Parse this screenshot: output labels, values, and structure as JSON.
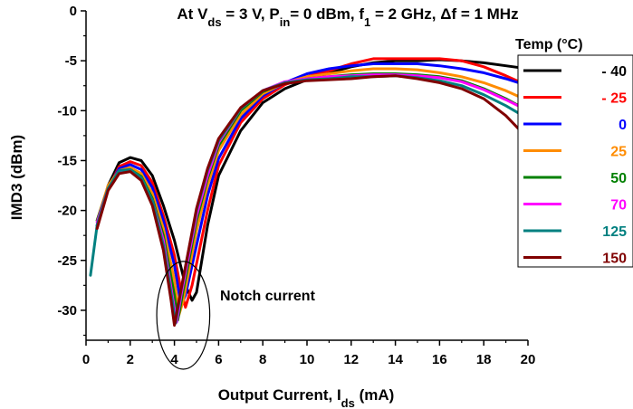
{
  "chart_data": {
    "type": "line",
    "title": {
      "prefix": "At V",
      "vds_sub": "ds",
      "vds_value": " = 3 V, P",
      "pin_sub": "in",
      "pin_value": "= 0 dBm, f",
      "f1_sub": "1",
      "f1_value": " = 2 GHz, ",
      "delta": "Δ",
      "df_value": "f = 1 MHz"
    },
    "xlabel": {
      "main": "Output Current, I",
      "sub": "ds",
      "unit": " (mA)"
    },
    "ylabel": "IMD3 (dBm)",
    "xlim": [
      0,
      20
    ],
    "ylim": [
      -33,
      0
    ],
    "x_ticks": [
      "0",
      "2",
      "4",
      "6",
      "8",
      "10",
      "12",
      "14",
      "16",
      "18",
      "20"
    ],
    "y_ticks": [
      "0",
      "-5",
      "-10",
      "-15",
      "-20",
      "-25",
      "-30"
    ],
    "grid": false,
    "legend": {
      "title": "Temp (°C)",
      "placement": "right"
    },
    "annotation": {
      "text": "Notch current",
      "ellipse_center": [
        4.4,
        -30.5
      ],
      "ellipse_radii": [
        1.2,
        5.4
      ]
    },
    "series": [
      {
        "name": "- 40",
        "color": "#000000",
        "points": [
          [
            0.5,
            -21.5
          ],
          [
            1,
            -17.5
          ],
          [
            1.5,
            -15.2
          ],
          [
            2,
            -14.7
          ],
          [
            2.5,
            -15.0
          ],
          [
            3,
            -16.5
          ],
          [
            3.5,
            -19.5
          ],
          [
            4,
            -23.0
          ],
          [
            4.5,
            -27.5
          ],
          [
            4.8,
            -29.0
          ],
          [
            5,
            -28.2
          ],
          [
            5.5,
            -21.5
          ],
          [
            6,
            -16.5
          ],
          [
            7,
            -12.0
          ],
          [
            8,
            -9.2
          ],
          [
            9,
            -7.8
          ],
          [
            10,
            -6.9
          ],
          [
            11,
            -6.2
          ],
          [
            12,
            -5.6
          ],
          [
            13,
            -5.2
          ],
          [
            14,
            -5.0
          ],
          [
            15,
            -5.0
          ],
          [
            16,
            -4.9
          ],
          [
            17,
            -5.0
          ],
          [
            18,
            -5.2
          ],
          [
            19,
            -5.5
          ],
          [
            20,
            -5.8
          ]
        ]
      },
      {
        "name": "- 25",
        "color": "#ff0000",
        "points": [
          [
            0.5,
            -21.8
          ],
          [
            1,
            -17.8
          ],
          [
            1.5,
            -15.6
          ],
          [
            2,
            -15.1
          ],
          [
            2.5,
            -15.5
          ],
          [
            3,
            -17.2
          ],
          [
            3.5,
            -20.5
          ],
          [
            4,
            -24.5
          ],
          [
            4.3,
            -28.0
          ],
          [
            4.5,
            -29.7
          ],
          [
            4.8,
            -27.5
          ],
          [
            5.5,
            -20.0
          ],
          [
            6,
            -15.5
          ],
          [
            7,
            -11.2
          ],
          [
            8,
            -8.8
          ],
          [
            9,
            -7.4
          ],
          [
            10,
            -6.6
          ],
          [
            11,
            -6.0
          ],
          [
            12,
            -5.3
          ],
          [
            13,
            -4.8
          ],
          [
            14,
            -4.8
          ],
          [
            15,
            -4.8
          ],
          [
            16,
            -4.8
          ],
          [
            17,
            -5.0
          ],
          [
            18,
            -5.6
          ],
          [
            19,
            -6.5
          ],
          [
            20,
            -7.5
          ]
        ]
      },
      {
        "name": "0",
        "color": "#0000ff",
        "points": [
          [
            0.5,
            -21.5
          ],
          [
            1,
            -17.7
          ],
          [
            1.5,
            -15.8
          ],
          [
            2,
            -15.4
          ],
          [
            2.5,
            -15.9
          ],
          [
            3,
            -17.7
          ],
          [
            3.5,
            -21.0
          ],
          [
            4,
            -25.5
          ],
          [
            4.3,
            -29.5
          ],
          [
            4.5,
            -28.5
          ],
          [
            5,
            -23.5
          ],
          [
            5.5,
            -18.5
          ],
          [
            6,
            -14.8
          ],
          [
            7,
            -10.8
          ],
          [
            8,
            -8.5
          ],
          [
            9,
            -7.2
          ],
          [
            10,
            -6.3
          ],
          [
            11,
            -5.8
          ],
          [
            12,
            -5.5
          ],
          [
            13,
            -5.3
          ],
          [
            14,
            -5.3
          ],
          [
            15,
            -5.3
          ],
          [
            16,
            -5.5
          ],
          [
            17,
            -5.8
          ],
          [
            18,
            -6.2
          ],
          [
            19,
            -6.8
          ],
          [
            20,
            -7.5
          ]
        ]
      },
      {
        "name": "25",
        "color": "#ff8c00",
        "points": [
          [
            0.5,
            -21.0
          ],
          [
            1,
            -17.5
          ],
          [
            1.5,
            -16.0
          ],
          [
            2,
            -15.7
          ],
          [
            2.5,
            -16.3
          ],
          [
            3,
            -18.3
          ],
          [
            3.5,
            -21.8
          ],
          [
            4,
            -27.0
          ],
          [
            4.2,
            -30.5
          ],
          [
            4.4,
            -29.0
          ],
          [
            5,
            -22.0
          ],
          [
            5.5,
            -17.5
          ],
          [
            6,
            -14.0
          ],
          [
            7,
            -10.4
          ],
          [
            8,
            -8.3
          ],
          [
            9,
            -7.2
          ],
          [
            10,
            -6.6
          ],
          [
            11,
            -6.3
          ],
          [
            12,
            -6.0
          ],
          [
            13,
            -5.8
          ],
          [
            14,
            -5.8
          ],
          [
            15,
            -5.9
          ],
          [
            16,
            -6.2
          ],
          [
            17,
            -6.6
          ],
          [
            18,
            -7.2
          ],
          [
            19,
            -8.0
          ],
          [
            20,
            -9.0
          ]
        ]
      },
      {
        "name": "50",
        "color": "#008000",
        "points": [
          [
            0.5,
            -21.0
          ],
          [
            1,
            -17.8
          ],
          [
            1.5,
            -16.2
          ],
          [
            2,
            -15.9
          ],
          [
            2.5,
            -16.6
          ],
          [
            3,
            -18.8
          ],
          [
            3.5,
            -22.5
          ],
          [
            4,
            -28.5
          ],
          [
            4.15,
            -31.0
          ],
          [
            4.4,
            -28.0
          ],
          [
            5,
            -21.0
          ],
          [
            5.5,
            -16.8
          ],
          [
            6,
            -13.5
          ],
          [
            7,
            -10.0
          ],
          [
            8,
            -8.1
          ],
          [
            9,
            -7.2
          ],
          [
            10,
            -6.8
          ],
          [
            11,
            -6.6
          ],
          [
            12,
            -6.4
          ],
          [
            13,
            -6.3
          ],
          [
            14,
            -6.3
          ],
          [
            15,
            -6.4
          ],
          [
            16,
            -6.6
          ],
          [
            17,
            -7.0
          ],
          [
            18,
            -7.8
          ],
          [
            19,
            -8.8
          ],
          [
            20,
            -10.0
          ]
        ]
      },
      {
        "name": "70",
        "color": "#ff00ff",
        "points": [
          [
            0.5,
            -21.2
          ],
          [
            1,
            -17.8
          ],
          [
            1.5,
            -16.2
          ],
          [
            2,
            -16.0
          ],
          [
            2.5,
            -16.8
          ],
          [
            3,
            -19.0
          ],
          [
            3.5,
            -23.0
          ],
          [
            3.9,
            -28.5
          ],
          [
            4.1,
            -31.2
          ],
          [
            4.3,
            -28.5
          ],
          [
            5,
            -20.5
          ],
          [
            5.5,
            -16.5
          ],
          [
            6,
            -13.2
          ],
          [
            7,
            -9.8
          ],
          [
            8,
            -8.0
          ],
          [
            9,
            -7.1
          ],
          [
            10,
            -6.8
          ],
          [
            11,
            -6.6
          ],
          [
            12,
            -6.5
          ],
          [
            13,
            -6.4
          ],
          [
            14,
            -6.4
          ],
          [
            15,
            -6.5
          ],
          [
            16,
            -6.7
          ],
          [
            17,
            -7.1
          ],
          [
            18,
            -7.9
          ],
          [
            19,
            -8.9
          ],
          [
            20,
            -10.0
          ]
        ]
      },
      {
        "name": "125",
        "color": "#008080",
        "points": [
          [
            0.2,
            -26.5
          ],
          [
            0.5,
            -21.5
          ],
          [
            1,
            -17.8
          ],
          [
            1.5,
            -16.0
          ],
          [
            2,
            -15.9
          ],
          [
            2.5,
            -16.7
          ],
          [
            3,
            -19.0
          ],
          [
            3.5,
            -23.5
          ],
          [
            3.9,
            -29.0
          ],
          [
            4.05,
            -31.3
          ],
          [
            4.3,
            -28.0
          ],
          [
            5,
            -20.0
          ],
          [
            5.5,
            -16.0
          ],
          [
            6,
            -13.0
          ],
          [
            7,
            -9.8
          ],
          [
            8,
            -8.0
          ],
          [
            9,
            -7.2
          ],
          [
            10,
            -6.9
          ],
          [
            11,
            -6.8
          ],
          [
            12,
            -6.6
          ],
          [
            13,
            -6.6
          ],
          [
            14,
            -6.5
          ],
          [
            15,
            -6.7
          ],
          [
            16,
            -7.0
          ],
          [
            17,
            -7.5
          ],
          [
            18,
            -8.4
          ],
          [
            19,
            -9.5
          ],
          [
            20,
            -10.8
          ]
        ]
      },
      {
        "name": "150",
        "color": "#800000",
        "points": [
          [
            0.5,
            -21.8
          ],
          [
            1,
            -18.0
          ],
          [
            1.5,
            -16.3
          ],
          [
            2,
            -16.1
          ],
          [
            2.5,
            -17.0
          ],
          [
            3,
            -19.5
          ],
          [
            3.5,
            -24.0
          ],
          [
            3.85,
            -29.0
          ],
          [
            4.0,
            -31.5
          ],
          [
            4.25,
            -28.5
          ],
          [
            5,
            -19.8
          ],
          [
            5.5,
            -15.8
          ],
          [
            6,
            -12.8
          ],
          [
            7,
            -9.7
          ],
          [
            8,
            -8.0
          ],
          [
            9,
            -7.3
          ],
          [
            10,
            -7.0
          ],
          [
            11,
            -6.9
          ],
          [
            12,
            -6.8
          ],
          [
            13,
            -6.6
          ],
          [
            14,
            -6.5
          ],
          [
            15,
            -6.8
          ],
          [
            16,
            -7.2
          ],
          [
            17,
            -7.8
          ],
          [
            18,
            -8.8
          ],
          [
            19,
            -10.5
          ],
          [
            20,
            -12.8
          ]
        ]
      }
    ]
  }
}
